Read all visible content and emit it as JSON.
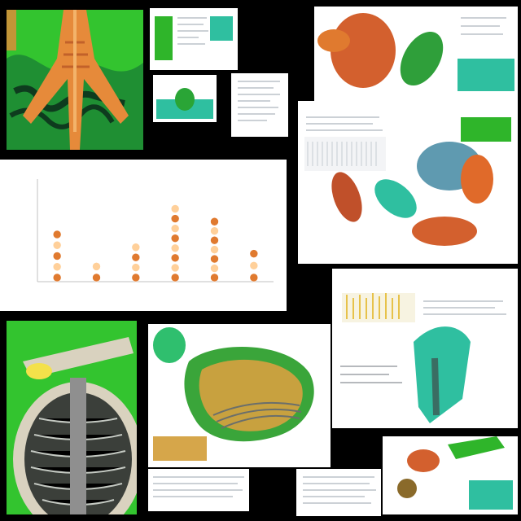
{
  "collage": {
    "background": "#000000",
    "panels": [
      {
        "name": "anatomy-top-left",
        "theme": "green-orange anatomy"
      },
      {
        "name": "chart-panel",
        "theme": "white chart"
      },
      {
        "name": "dissection-bottom-left",
        "theme": "green bg"
      },
      {
        "name": "organ-bottom-center",
        "theme": "green-yellow organ"
      }
    ]
  },
  "chart": {
    "title": "",
    "xlabel": "",
    "ylabel": "",
    "tick_labels": [
      "",
      "",
      "",
      "",
      "",
      ""
    ]
  },
  "chart_data": {
    "type": "bar",
    "categories": [
      "",
      "",
      "",
      "",
      "",
      ""
    ],
    "values": [
      4,
      1.5,
      3,
      6,
      5,
      2.5
    ],
    "ylim": [
      0,
      8
    ],
    "grid": false,
    "colors": {
      "bar": "#e07a2f",
      "accent": "#ffd09a"
    }
  },
  "colors": {
    "green": "#2fb52a",
    "orange": "#e0732c",
    "teal": "#2fbfa0",
    "dark": "#0a0a0a"
  }
}
